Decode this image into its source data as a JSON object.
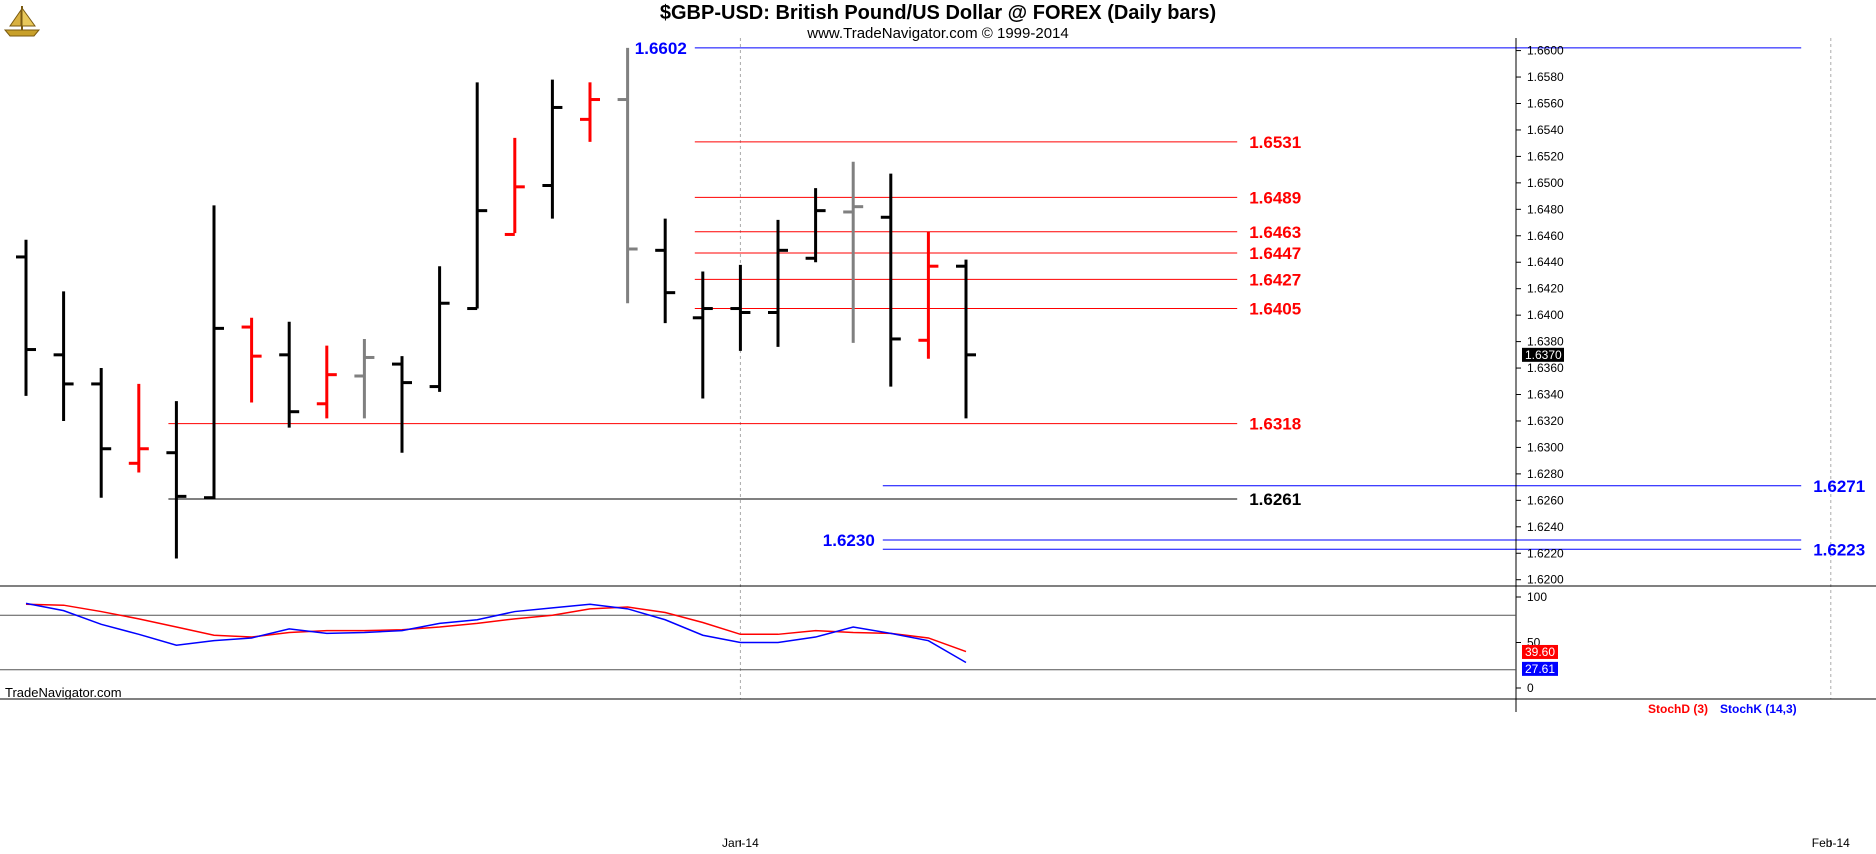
{
  "header": {
    "title": "$GBP-USD:  British Pound/US Dollar @ FOREX  (Daily bars)",
    "subtitle": "www.TradeNavigator.com © 1999-2014"
  },
  "watermark": "TradeNavigator.com",
  "logo_icon": "ship-logo-icon",
  "colors": {
    "up_bar": "#000000",
    "down_bar": "#ff0000",
    "neutral_bar": "#808080",
    "support_resistance": "#ff0000",
    "major_level": "#0000ff",
    "black_level": "#000000",
    "stoch_d": "#ff0000",
    "stoch_k": "#0000ff",
    "last_price_bg": "#000000"
  },
  "chart_data": [
    {
      "type": "ohlc",
      "title": "$GBP-USD:  British Pound/US Dollar @ FOREX  (Daily bars)",
      "y_ticks": [
        "1.6600",
        "1.6580",
        "1.6560",
        "1.6540",
        "1.6520",
        "1.6500",
        "1.6480",
        "1.6460",
        "1.6440",
        "1.6420",
        "1.6400",
        "1.6380",
        "1.6360",
        "1.6340",
        "1.6320",
        "1.6300",
        "1.6280",
        "1.6260",
        "1.6240",
        "1.6220",
        "1.6200"
      ],
      "ylim": [
        1.6196,
        1.6608
      ],
      "x_ticks": [
        {
          "label": "Jan-14",
          "index": 19
        },
        {
          "label": "Feb-14",
          "index": 48
        }
      ],
      "last_price": "1.6370",
      "bars": [
        {
          "o": 1.6444,
          "h": 1.6457,
          "l": 1.6339,
          "c": 1.6374,
          "color": "black"
        },
        {
          "o": 1.637,
          "h": 1.6418,
          "l": 1.632,
          "c": 1.6348,
          "color": "black"
        },
        {
          "o": 1.6348,
          "h": 1.636,
          "l": 1.6262,
          "c": 1.6299,
          "color": "black"
        },
        {
          "o": 1.6288,
          "h": 1.6348,
          "l": 1.6281,
          "c": 1.6299,
          "color": "red"
        },
        {
          "o": 1.6296,
          "h": 1.6335,
          "l": 1.6216,
          "c": 1.6263,
          "color": "black"
        },
        {
          "o": 1.6262,
          "h": 1.6483,
          "l": 1.6261,
          "c": 1.639,
          "color": "black"
        },
        {
          "o": 1.6391,
          "h": 1.6398,
          "l": 1.6334,
          "c": 1.6369,
          "color": "red"
        },
        {
          "o": 1.637,
          "h": 1.6395,
          "l": 1.6315,
          "c": 1.6327,
          "color": "black"
        },
        {
          "o": 1.6333,
          "h": 1.6377,
          "l": 1.6322,
          "c": 1.6355,
          "color": "red"
        },
        {
          "o": 1.6354,
          "h": 1.6382,
          "l": 1.6322,
          "c": 1.6368,
          "color": "gray"
        },
        {
          "o": 1.6363,
          "h": 1.6369,
          "l": 1.6296,
          "c": 1.6349,
          "color": "black"
        },
        {
          "o": 1.6346,
          "h": 1.6437,
          "l": 1.6342,
          "c": 1.6409,
          "color": "black"
        },
        {
          "o": 1.6405,
          "h": 1.6576,
          "l": 1.6405,
          "c": 1.6479,
          "color": "black"
        },
        {
          "o": 1.6461,
          "h": 1.6534,
          "l": 1.6462,
          "c": 1.6497,
          "color": "red"
        },
        {
          "o": 1.6498,
          "h": 1.6578,
          "l": 1.6473,
          "c": 1.6557,
          "color": "black"
        },
        {
          "o": 1.6548,
          "h": 1.6576,
          "l": 1.6531,
          "c": 1.6563,
          "color": "red"
        },
        {
          "o": 1.6563,
          "h": 1.6602,
          "l": 1.6409,
          "c": 1.645,
          "color": "gray"
        },
        {
          "o": 1.6449,
          "h": 1.6473,
          "l": 1.6394,
          "c": 1.6417,
          "color": "black"
        },
        {
          "o": 1.6398,
          "h": 1.6433,
          "l": 1.6337,
          "c": 1.6405,
          "color": "black"
        },
        {
          "o": 1.6405,
          "h": 1.6438,
          "l": 1.6373,
          "c": 1.6402,
          "color": "black"
        },
        {
          "o": 1.6402,
          "h": 1.6472,
          "l": 1.6376,
          "c": 1.6449,
          "color": "black"
        },
        {
          "o": 1.6443,
          "h": 1.6496,
          "l": 1.644,
          "c": 1.6479,
          "color": "black"
        },
        {
          "o": 1.6478,
          "h": 1.6516,
          "l": 1.6379,
          "c": 1.6482,
          "color": "gray"
        },
        {
          "o": 1.6474,
          "h": 1.6507,
          "l": 1.6346,
          "c": 1.6382,
          "color": "black"
        },
        {
          "o": 1.6381,
          "h": 1.6463,
          "l": 1.6367,
          "c": 1.6437,
          "color": "red"
        },
        {
          "o": 1.6437,
          "h": 1.6442,
          "l": 1.6322,
          "c": 1.637,
          "color": "black"
        }
      ],
      "levels": [
        {
          "value": 1.6602,
          "label": "1.6602",
          "color": "blue",
          "from": 18,
          "to": 47,
          "label_side": "left"
        },
        {
          "value": 1.6531,
          "label": "1.6531",
          "color": "red",
          "from": 18,
          "to": 32,
          "label_side": "right"
        },
        {
          "value": 1.6489,
          "label": "1.6489",
          "color": "red",
          "from": 18,
          "to": 32,
          "label_side": "right"
        },
        {
          "value": 1.6463,
          "label": "1.6463",
          "color": "red",
          "from": 18,
          "to": 32,
          "label_side": "right"
        },
        {
          "value": 1.6447,
          "label": "1.6447",
          "color": "red",
          "from": 18,
          "to": 32,
          "label_side": "right"
        },
        {
          "value": 1.6427,
          "label": "1.6427",
          "color": "red",
          "from": 18,
          "to": 32,
          "label_side": "right"
        },
        {
          "value": 1.6405,
          "label": "1.6405",
          "color": "red",
          "from": 18,
          "to": 32,
          "label_side": "right"
        },
        {
          "value": 1.6318,
          "label": "1.6318",
          "color": "red",
          "from": 4,
          "to": 32,
          "label_side": "right"
        },
        {
          "value": 1.6271,
          "label": "1.6271",
          "color": "blue",
          "from": 23,
          "to": 47,
          "label_side": "right"
        },
        {
          "value": 1.6261,
          "label": "1.6261",
          "color": "black",
          "from": 4,
          "to": 32,
          "label_side": "right"
        },
        {
          "value": 1.623,
          "label": "1.6230",
          "color": "blue",
          "from": 23,
          "to": 47,
          "label_side": "left"
        },
        {
          "value": 1.6223,
          "label": "1.6223",
          "color": "blue",
          "from": 23,
          "to": 47,
          "label_side": "right"
        }
      ]
    },
    {
      "type": "line",
      "series": [
        {
          "name": "StochD (3)",
          "color": "red",
          "values": [
            92,
            91,
            84,
            76,
            67,
            58,
            56,
            61,
            63,
            63,
            64,
            67,
            71,
            76,
            80,
            87,
            89,
            83,
            72,
            59,
            59,
            63,
            61,
            60,
            55,
            40
          ]
        },
        {
          "name": "StochK (14,3)",
          "color": "blue",
          "values": [
            93,
            85,
            70,
            59,
            47,
            52,
            55,
            65,
            60,
            61,
            63,
            71,
            75,
            84,
            88,
            92,
            87,
            75,
            58,
            50,
            50,
            56,
            67,
            60,
            52,
            28
          ]
        }
      ],
      "y_ticks": [
        "100",
        "50",
        "0"
      ],
      "ylim": [
        0,
        100
      ],
      "reference_lines": [
        80,
        20
      ],
      "last_values": {
        "d": "39.60",
        "k": "27.61"
      }
    }
  ]
}
